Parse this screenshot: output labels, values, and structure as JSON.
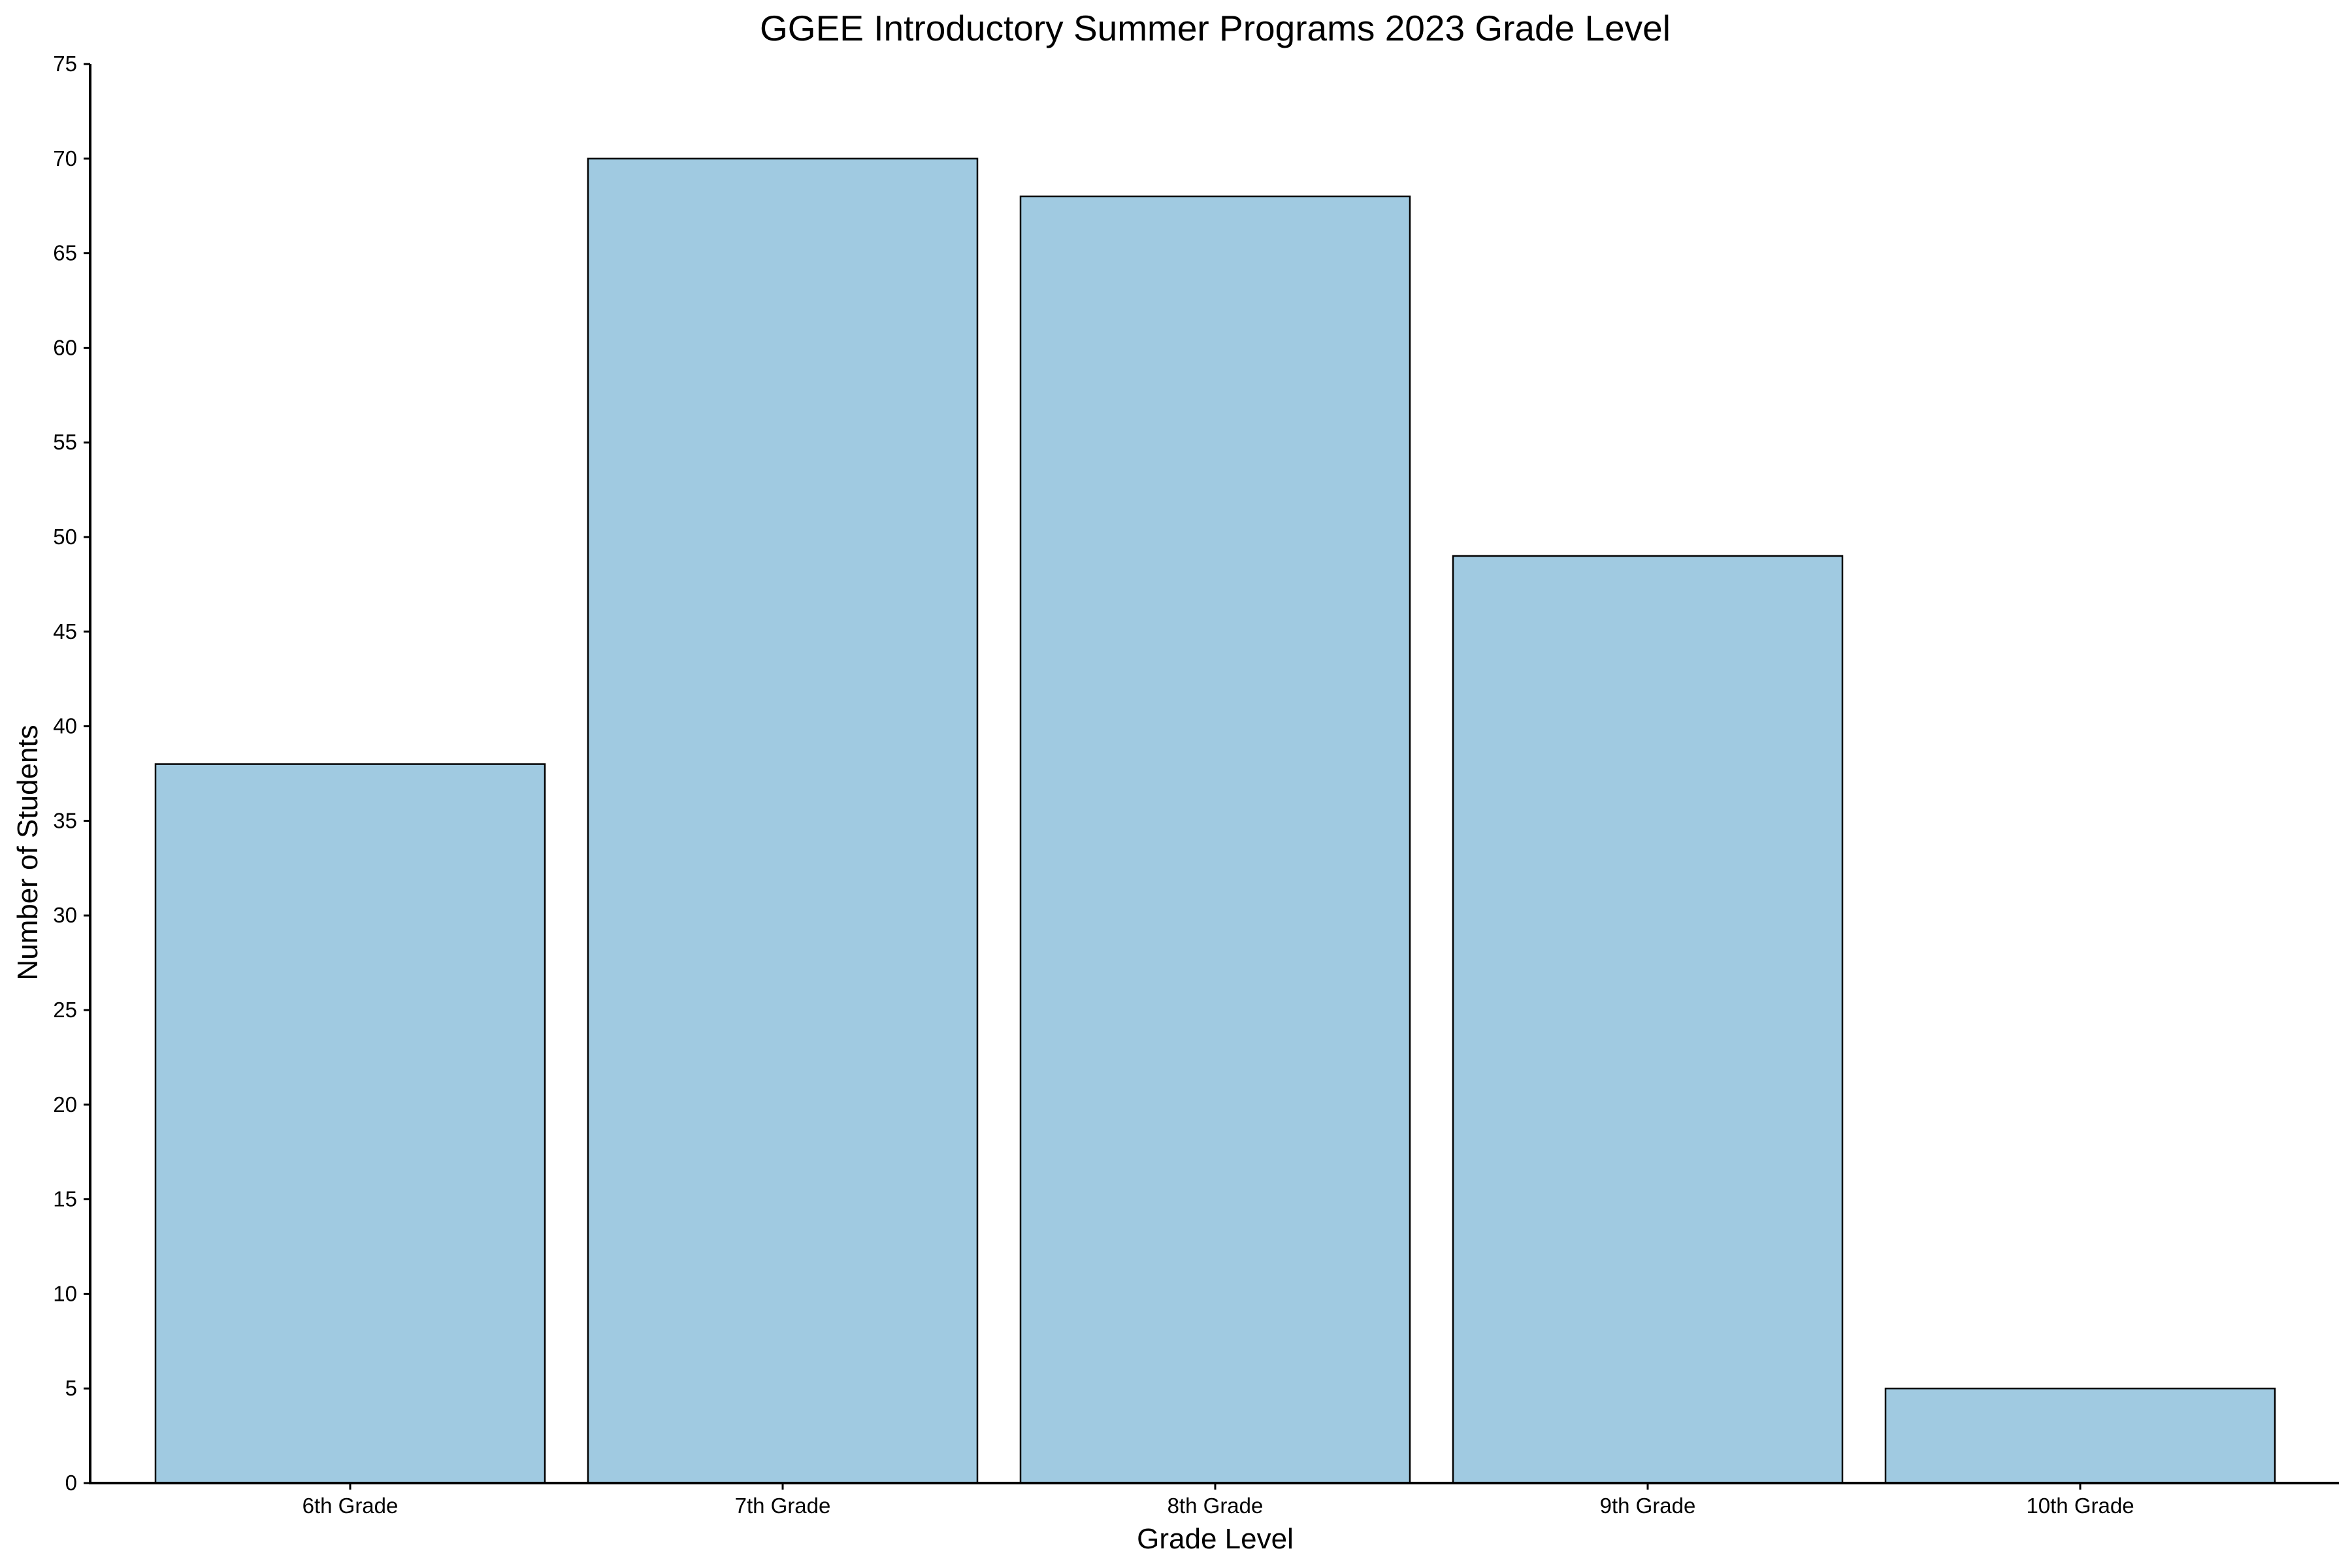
{
  "chart_data": {
    "type": "bar",
    "title": "GGEE Introductory Summer Programs 2023 Grade Level",
    "xlabel": "Grade Level",
    "ylabel": "Number of Students",
    "categories": [
      "6th Grade",
      "7th Grade",
      "8th Grade",
      "9th Grade",
      "10th Grade"
    ],
    "values": [
      38,
      70,
      68,
      49,
      5
    ],
    "ylim": [
      0,
      75
    ],
    "yticks": [
      0,
      5,
      10,
      15,
      20,
      25,
      30,
      35,
      40,
      45,
      50,
      55,
      60,
      65,
      70,
      75
    ],
    "grid": false,
    "bar_color": "#a0cae1",
    "edge_color": "#000000"
  }
}
